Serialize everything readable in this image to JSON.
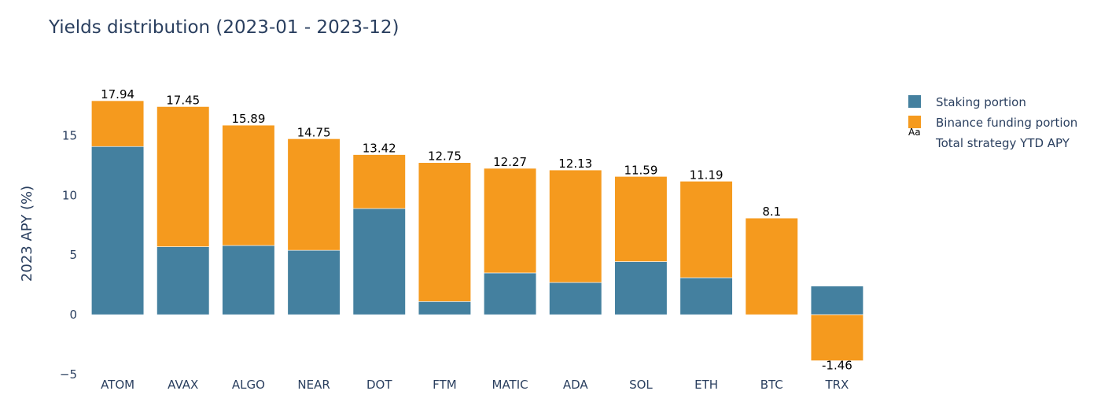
{
  "chart_data": {
    "type": "bar",
    "title": "Yields distribution (2023-01 - 2023-12)",
    "xlabel": "",
    "ylabel": "2023 APY (%)",
    "ylim": [
      -5,
      18.5
    ],
    "yticks": [
      -5,
      0,
      5,
      10,
      15
    ],
    "barmode": "relative",
    "categories": [
      "ATOM",
      "AVAX",
      "ALGO",
      "NEAR",
      "DOT",
      "FTM",
      "MATIC",
      "ADA",
      "SOL",
      "ETH",
      "BTC",
      "TRX"
    ],
    "series": [
      {
        "name": "Staking portion",
        "color": "#44809f",
        "values": [
          14.1,
          5.7,
          5.8,
          5.4,
          8.9,
          1.1,
          3.5,
          2.7,
          4.45,
          3.1,
          0,
          2.4
        ]
      },
      {
        "name": "Binance funding portion",
        "color": "#f59a1e",
        "values": [
          3.84,
          11.75,
          10.09,
          9.35,
          4.52,
          11.65,
          8.77,
          9.43,
          7.14,
          8.09,
          8.1,
          -3.86
        ]
      }
    ],
    "total_series": {
      "name": "Total strategy YTD APY",
      "values": [
        17.94,
        17.45,
        15.89,
        14.75,
        13.42,
        12.75,
        12.27,
        12.13,
        11.59,
        11.19,
        8.1,
        -1.46
      ],
      "labels": [
        "17.94",
        "17.45",
        "15.89",
        "14.75",
        "13.42",
        "12.75",
        "12.27",
        "12.13",
        "11.59",
        "11.19",
        "8.1",
        "-1.46"
      ]
    },
    "legend": {
      "position": "top-right",
      "text_marker": "Aa"
    },
    "grid": false
  }
}
